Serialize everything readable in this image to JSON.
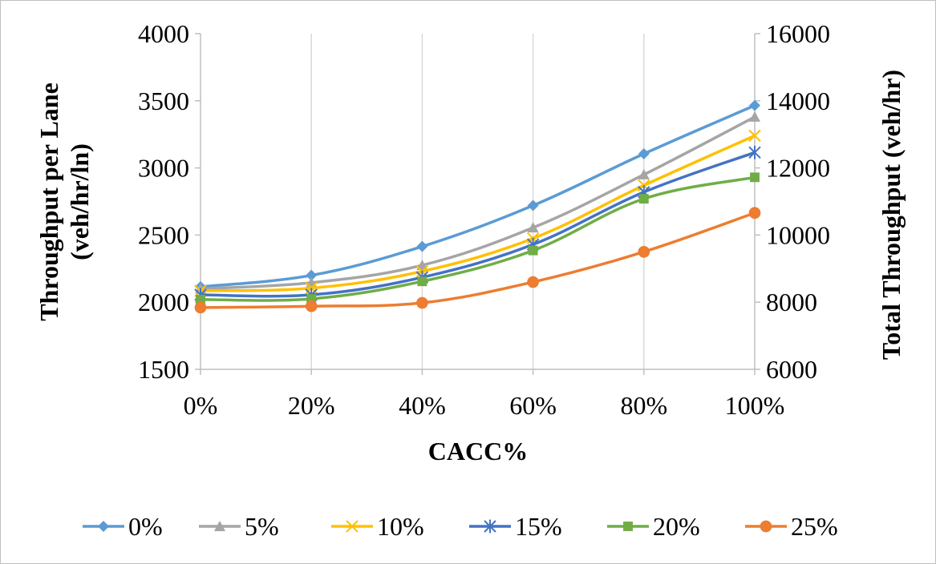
{
  "chart_data": {
    "type": "line",
    "categories": [
      "0%",
      "20%",
      "40%",
      "60%",
      "80%",
      "100%"
    ],
    "xlabel": "CACC%",
    "ylabel_line1": "Throughput per Lane",
    "ylabel_line2": "(veh/hr/ln)",
    "y2label": "Total Throughput (veh/hr)",
    "ylim": [
      1500,
      4000
    ],
    "yticks": [
      1500,
      2000,
      2500,
      3000,
      3500,
      4000
    ],
    "y2lim": [
      6000,
      16000
    ],
    "y2ticks": [
      6000,
      8000,
      10000,
      12000,
      14000,
      16000
    ],
    "grid": "vertical",
    "legend_position": "bottom",
    "series": [
      {
        "name": "0%",
        "color": "#5b9bd5",
        "marker": "diamond",
        "values": [
          2115,
          2200,
          2415,
          2720,
          3105,
          3465
        ]
      },
      {
        "name": "5%",
        "color": "#a5a5a5",
        "marker": "triangle",
        "values": [
          2100,
          2145,
          2275,
          2555,
          2950,
          3380
        ]
      },
      {
        "name": "10%",
        "color": "#ffc000",
        "marker": "x",
        "values": [
          2085,
          2105,
          2230,
          2475,
          2870,
          3240
        ]
      },
      {
        "name": "15%",
        "color": "#4472c4",
        "marker": "star",
        "values": [
          2055,
          2055,
          2185,
          2430,
          2820,
          3115
        ]
      },
      {
        "name": "20%",
        "color": "#70ad47",
        "marker": "square",
        "values": [
          2020,
          2025,
          2155,
          2385,
          2770,
          2930
        ]
      },
      {
        "name": "25%",
        "color": "#ed7d31",
        "marker": "circle",
        "values": [
          1960,
          1970,
          1995,
          2150,
          2375,
          2665
        ]
      }
    ]
  }
}
